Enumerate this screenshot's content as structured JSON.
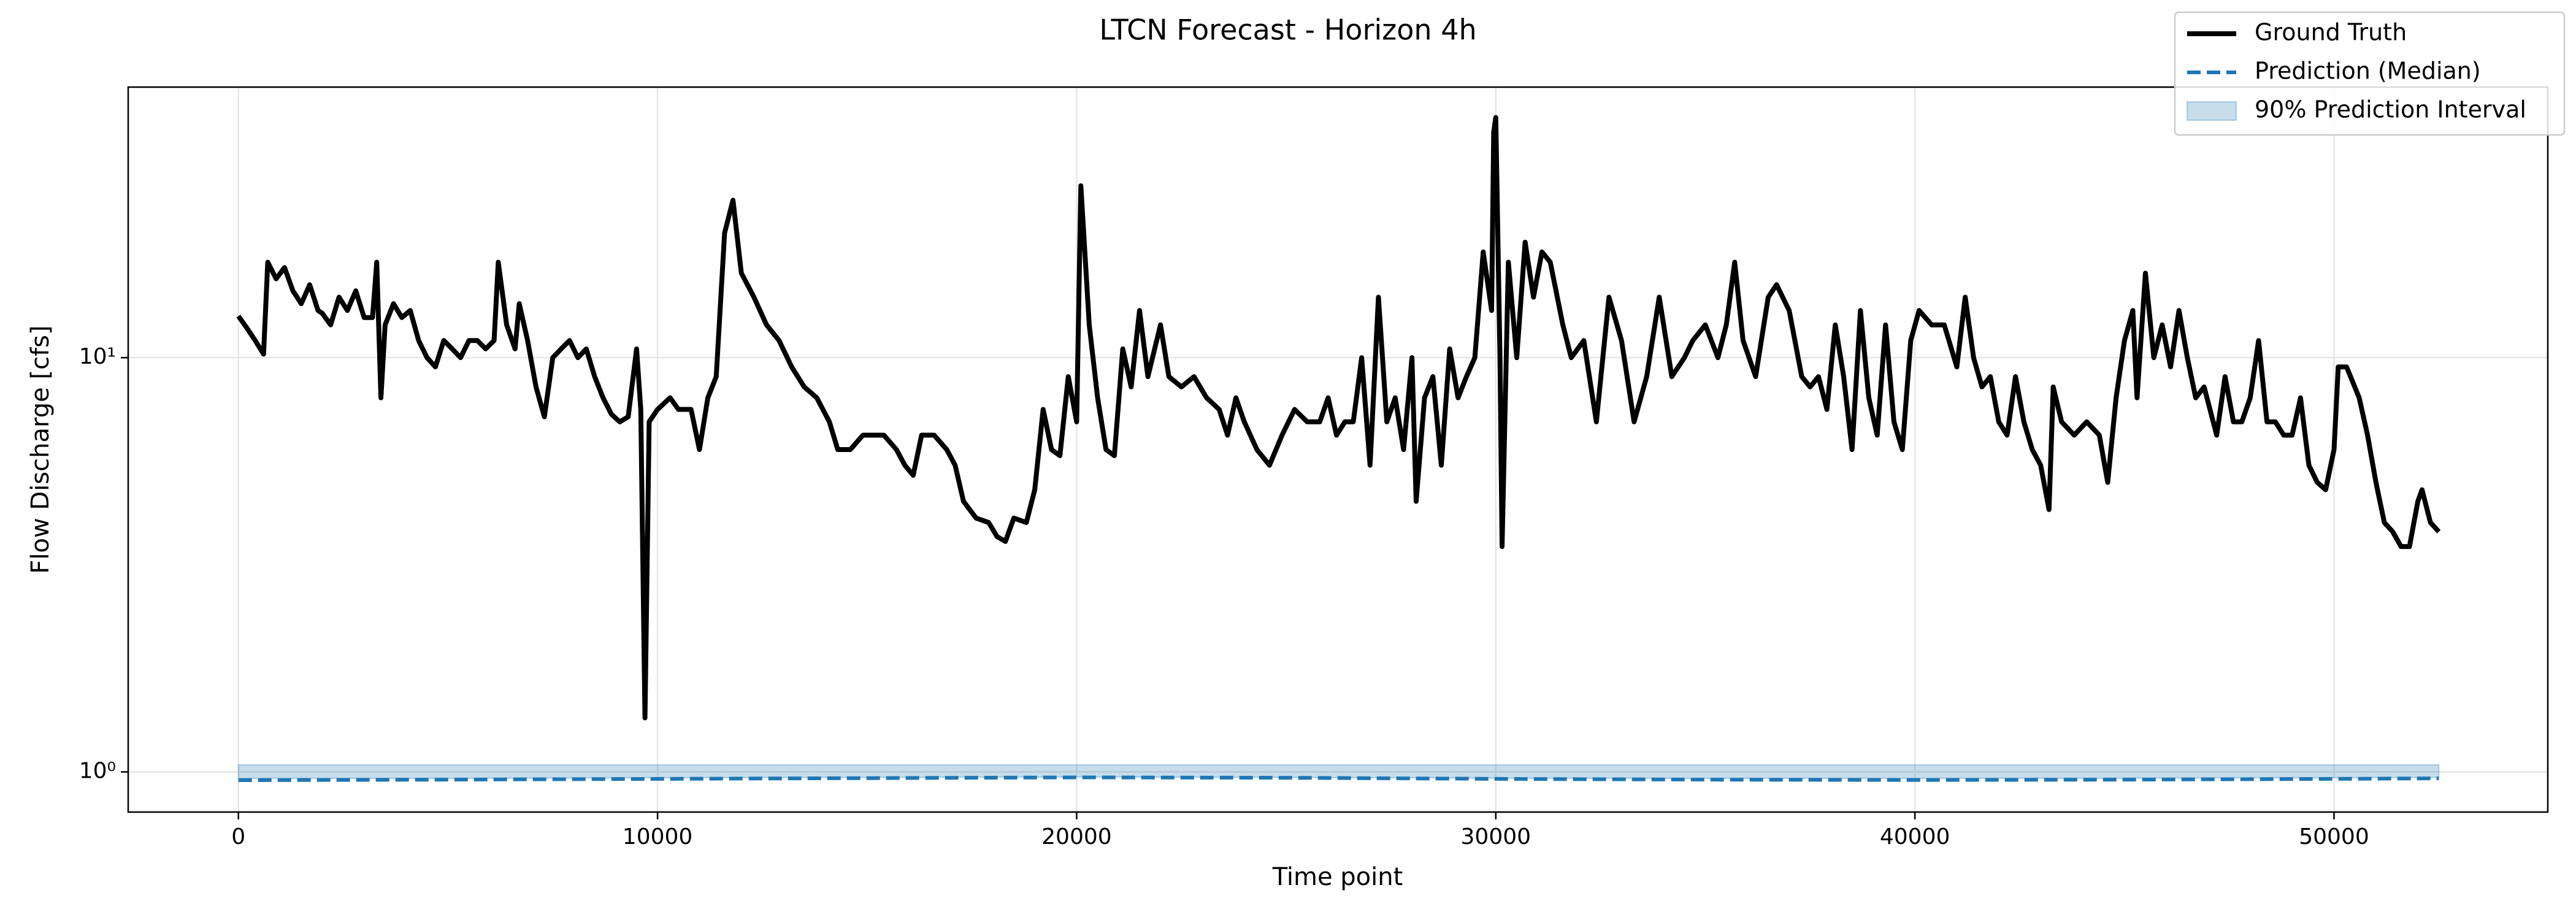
{
  "chart_data": {
    "type": "line",
    "title": "LTCN Forecast - Horizon 4h",
    "xlabel": "Time point",
    "ylabel": "Flow Discharge [cfs]",
    "xlim": [
      -2630,
      55100
    ],
    "ylim": [
      0.8,
      45
    ],
    "log_y": true,
    "grid": true,
    "legend": "upper right",
    "xticks": [
      0,
      10000,
      20000,
      30000,
      40000,
      50000
    ],
    "yticks": [
      {
        "value": 1,
        "label": "10⁰"
      },
      {
        "value": 10,
        "label": "10¹"
      }
    ],
    "series": [
      {
        "name": "Ground Truth",
        "color": "#000000",
        "style": "solid",
        "x": [
          0,
          200,
          400,
          600,
          700,
          900,
          1100,
          1300,
          1500,
          1700,
          1900,
          2000,
          2200,
          2400,
          2600,
          2800,
          3000,
          3200,
          3300,
          3400,
          3500,
          3700,
          3900,
          4100,
          4300,
          4500,
          4700,
          4900,
          5100,
          5300,
          5500,
          5700,
          5900,
          6100,
          6200,
          6400,
          6600,
          6700,
          6900,
          7100,
          7300,
          7500,
          7700,
          7900,
          8100,
          8300,
          8500,
          8700,
          8900,
          9100,
          9300,
          9500,
          9600,
          9700,
          9800,
          10000,
          10300,
          10500,
          10800,
          11000,
          11200,
          11400,
          11600,
          11800,
          12000,
          12300,
          12600,
          12900,
          13200,
          13500,
          13800,
          14100,
          14300,
          14600,
          14900,
          15100,
          15400,
          15700,
          15900,
          16100,
          16300,
          16600,
          16900,
          17100,
          17300,
          17600,
          17900,
          18100,
          18300,
          18500,
          18800,
          19000,
          19200,
          19400,
          19600,
          19800,
          20000,
          20100,
          20300,
          20500,
          20700,
          20900,
          21100,
          21300,
          21500,
          21700,
          22000,
          22200,
          22500,
          22800,
          23100,
          23400,
          23600,
          23800,
          24000,
          24300,
          24600,
          24900,
          25200,
          25500,
          25800,
          26000,
          26200,
          26400,
          26600,
          26800,
          27000,
          27200,
          27400,
          27600,
          27800,
          28000,
          28100,
          28300,
          28500,
          28700,
          28900,
          29100,
          29300,
          29500,
          29700,
          29900,
          29950,
          30000,
          30100,
          30150,
          30300,
          30500,
          30700,
          30900,
          31100,
          31300,
          31600,
          31800,
          32100,
          32400,
          32700,
          33000,
          33300,
          33600,
          33900,
          34200,
          34500,
          34700,
          35000,
          35300,
          35500,
          35700,
          35900,
          36200,
          36500,
          36700,
          37000,
          37300,
          37500,
          37700,
          37900,
          38100,
          38300,
          38500,
          38700,
          38900,
          39100,
          39300,
          39500,
          39700,
          39900,
          40100,
          40400,
          40700,
          41000,
          41200,
          41400,
          41600,
          41800,
          42000,
          42200,
          42400,
          42600,
          42800,
          43000,
          43200,
          43300,
          43500,
          43800,
          44100,
          44400,
          44600,
          44800,
          45000,
          45200,
          45300,
          45500,
          45700,
          45900,
          46100,
          46300,
          46500,
          46700,
          46900,
          47200,
          47400,
          47600,
          47800,
          48000,
          48200,
          48400,
          48600,
          48800,
          49000,
          49200,
          49400,
          49600,
          49800,
          50000,
          50100,
          50300,
          50600,
          50800,
          51000,
          51200,
          51400,
          51600,
          51800,
          52000,
          52100,
          52300,
          52500
        ],
        "values": [
          12.6,
          11.8,
          11,
          10.2,
          17,
          15.5,
          16.5,
          14.5,
          13.5,
          15,
          13,
          12.8,
          12,
          14,
          13,
          14.5,
          12.5,
          12.5,
          17,
          8,
          12,
          13.5,
          12.5,
          13,
          11,
          10,
          9.5,
          11,
          10.5,
          10,
          11,
          11,
          10.5,
          11,
          17,
          12,
          10.5,
          13.5,
          11,
          8.5,
          7.2,
          10,
          10.5,
          11,
          10,
          10.5,
          9,
          8,
          7.3,
          7,
          7.2,
          10.5,
          7.5,
          1.35,
          7,
          7.5,
          8,
          7.5,
          7.5,
          6,
          8,
          9,
          20,
          24,
          16,
          14,
          12,
          11,
          9.5,
          8.5,
          8,
          7,
          6,
          6,
          6.5,
          6.5,
          6.5,
          6,
          5.5,
          5.2,
          6.5,
          6.5,
          6,
          5.5,
          4.5,
          4.1,
          4,
          3.7,
          3.6,
          4.1,
          4,
          4.8,
          7.5,
          6,
          5.8,
          9,
          7,
          26,
          12,
          8,
          6,
          5.8,
          10.5,
          8.5,
          13,
          9,
          12,
          9,
          8.5,
          9,
          8,
          7.5,
          6.5,
          8,
          7,
          6,
          5.5,
          6.5,
          7.5,
          7,
          7,
          8,
          6.5,
          7,
          7,
          10,
          5.5,
          14,
          7,
          8,
          6,
          10,
          4.5,
          8,
          9,
          5.5,
          10.5,
          8,
          9,
          10,
          18,
          13,
          35,
          38,
          10,
          3.5,
          17,
          10,
          19,
          14,
          18,
          17,
          12,
          10,
          11,
          7,
          14,
          11,
          7,
          9,
          14,
          9,
          10,
          11,
          12,
          10,
          12,
          17,
          11,
          9,
          14,
          15,
          13,
          9,
          8.5,
          9,
          7.5,
          12,
          9,
          6,
          13,
          8,
          6.5,
          12,
          7,
          6,
          11,
          13,
          12,
          12,
          9.5,
          14,
          10,
          8.5,
          9,
          7,
          6.5,
          9,
          7,
          6,
          5.5,
          4.3,
          8.5,
          7,
          6.5,
          7,
          6.5,
          5,
          8,
          11,
          13,
          8,
          16,
          10,
          12,
          9.5,
          13,
          10,
          8,
          8.5,
          6.5,
          9,
          7,
          7,
          8,
          11,
          7,
          7,
          6.5,
          6.5,
          8,
          5.5,
          5,
          4.8,
          6,
          9.5,
          9.5,
          8,
          6.5,
          5,
          4,
          3.8,
          3.5,
          3.5,
          4.5,
          4.8,
          4,
          3.8
        ]
      },
      {
        "name": "Prediction (Median)",
        "color": "#1f77b4",
        "style": "dashed",
        "x": [
          0,
          5000,
          10000,
          15000,
          20000,
          25000,
          30000,
          35000,
          40000,
          45000,
          50000,
          52500
        ],
        "values": [
          0.955,
          0.958,
          0.962,
          0.966,
          0.97,
          0.968,
          0.962,
          0.958,
          0.956,
          0.958,
          0.962,
          0.965
        ]
      },
      {
        "name": "90% Prediction Interval",
        "color": "#1f77b4",
        "style": "band",
        "x": [
          0,
          5000,
          10000,
          15000,
          20000,
          25000,
          30000,
          35000,
          40000,
          45000,
          50000,
          52500
        ],
        "lower": [
          0.965,
          0.965,
          0.968,
          0.97,
          0.972,
          0.97,
          0.966,
          0.965,
          0.965,
          0.966,
          0.968,
          0.97
        ],
        "upper": [
          1.04,
          1.04,
          1.04,
          1.04,
          1.04,
          1.04,
          1.04,
          1.04,
          1.04,
          1.04,
          1.04,
          1.04
        ]
      }
    ]
  }
}
